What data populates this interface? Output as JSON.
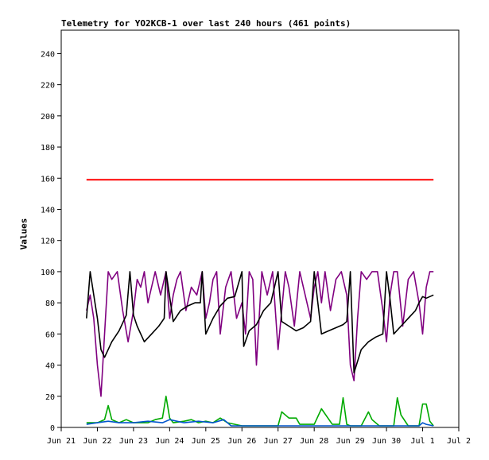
{
  "chart_data": {
    "type": "line",
    "title": "Telemetry for YO2KCB-1 over last 240 hours (461 points)",
    "ylabel": "Values",
    "xlabel": "",
    "ylim": [
      0,
      255
    ],
    "xlim": [
      0,
      11
    ],
    "y_ticks": [
      0,
      20,
      40,
      60,
      80,
      100,
      120,
      140,
      160,
      180,
      200,
      220,
      240
    ],
    "x_ticks": [
      "Jun 21",
      "Jun 22",
      "Jun 23",
      "Jun 24",
      "Jun 25",
      "Jun 26",
      "Jun 27",
      "Jun 28",
      "Jun 29",
      "Jun 30",
      "Jul 1",
      "Jul 2"
    ],
    "grid": false,
    "series": [
      {
        "color": "#ff0000",
        "x": [
          0.7,
          10.3
        ],
        "values": [
          159,
          159
        ]
      },
      {
        "color": "#800080",
        "x": [
          0.7,
          0.8,
          0.9,
          1.0,
          1.1,
          1.2,
          1.3,
          1.4,
          1.55,
          1.7,
          1.85,
          2.0,
          2.1,
          2.2,
          2.3,
          2.4,
          2.5,
          2.6,
          2.75,
          2.9,
          3.0,
          3.1,
          3.2,
          3.3,
          3.45,
          3.6,
          3.75,
          3.9,
          4.0,
          4.1,
          4.2,
          4.3,
          4.4,
          4.55,
          4.7,
          4.85,
          5.0,
          5.1,
          5.2,
          5.3,
          5.4,
          5.55,
          5.7,
          5.85,
          6.0,
          6.1,
          6.2,
          6.3,
          6.45,
          6.6,
          6.75,
          6.9,
          7.0,
          7.1,
          7.2,
          7.3,
          7.45,
          7.6,
          7.75,
          7.9,
          8.0,
          8.1,
          8.2,
          8.3,
          8.45,
          8.6,
          8.75,
          8.9,
          9.0,
          9.1,
          9.2,
          9.3,
          9.45,
          9.6,
          9.75,
          9.9,
          10.0,
          10.1,
          10.2,
          10.3
        ],
        "values": [
          75,
          85,
          70,
          40,
          20,
          60,
          100,
          95,
          100,
          75,
          55,
          75,
          95,
          90,
          100,
          80,
          90,
          100,
          85,
          100,
          70,
          85,
          95,
          100,
          75,
          90,
          85,
          100,
          70,
          80,
          95,
          100,
          60,
          90,
          100,
          70,
          80,
          60,
          100,
          95,
          40,
          100,
          85,
          100,
          50,
          75,
          100,
          90,
          65,
          100,
          85,
          70,
          90,
          100,
          80,
          100,
          75,
          95,
          100,
          85,
          40,
          30,
          70,
          100,
          95,
          100,
          100,
          75,
          55,
          85,
          100,
          100,
          65,
          95,
          100,
          80,
          60,
          90,
          100,
          100
        ]
      },
      {
        "color": "#000000",
        "x": [
          0.7,
          0.8,
          0.9,
          1.0,
          1.1,
          1.2,
          1.4,
          1.6,
          1.8,
          1.9,
          2.0,
          2.1,
          2.3,
          2.5,
          2.7,
          2.85,
          2.9,
          3.1,
          3.3,
          3.5,
          3.7,
          3.85,
          3.9,
          4.0,
          4.2,
          4.4,
          4.6,
          4.8,
          5.0,
          5.05,
          5.2,
          5.4,
          5.6,
          5.8,
          6.0,
          6.1,
          6.3,
          6.5,
          6.7,
          6.9,
          7.0,
          7.2,
          7.4,
          7.6,
          7.8,
          7.9,
          8.0,
          8.1,
          8.3,
          8.5,
          8.7,
          8.9,
          9.0,
          9.1,
          9.2,
          9.4,
          9.6,
          9.8,
          9.9,
          10.0,
          10.1,
          10.3
        ],
        "values": [
          70,
          100,
          85,
          70,
          50,
          45,
          55,
          62,
          72,
          100,
          72,
          65,
          55,
          60,
          65,
          70,
          100,
          68,
          75,
          78,
          80,
          80,
          100,
          60,
          70,
          78,
          83,
          84,
          100,
          52,
          62,
          66,
          75,
          80,
          100,
          68,
          65,
          62,
          64,
          68,
          100,
          60,
          62,
          64,
          66,
          68,
          100,
          35,
          50,
          55,
          58,
          60,
          100,
          82,
          60,
          65,
          70,
          75,
          80,
          84,
          83,
          85
        ]
      },
      {
        "color": "#00aa00",
        "x": [
          0.7,
          1.0,
          1.2,
          1.3,
          1.4,
          1.6,
          1.8,
          2.0,
          2.4,
          2.6,
          2.8,
          2.9,
          3.0,
          3.1,
          3.4,
          3.6,
          3.8,
          4.0,
          4.2,
          4.4,
          4.6,
          5.0,
          5.5,
          6.0,
          6.1,
          6.3,
          6.5,
          6.6,
          7.0,
          7.2,
          7.5,
          7.7,
          7.8,
          7.9,
          8.0,
          8.3,
          8.5,
          8.6,
          8.8,
          9.0,
          9.2,
          9.3,
          9.4,
          9.6,
          9.9,
          10.0,
          10.1,
          10.2,
          10.3
        ],
        "values": [
          3,
          3,
          5,
          14,
          5,
          3,
          5,
          3,
          3,
          5,
          6,
          20,
          6,
          3,
          4,
          5,
          3,
          4,
          3,
          6,
          3,
          1,
          1,
          1,
          10,
          6,
          6,
          2,
          2,
          12,
          2,
          2,
          19,
          2,
          1,
          1,
          10,
          5,
          1,
          1,
          1,
          19,
          8,
          1,
          1,
          15,
          15,
          4,
          1
        ]
      },
      {
        "color": "#0055cc",
        "x": [
          0.7,
          1.0,
          1.3,
          1.6,
          2.0,
          2.4,
          2.8,
          3.0,
          3.4,
          3.8,
          4.2,
          4.5,
          4.7,
          5.0,
          5.5,
          6.0,
          6.5,
          7.0,
          7.5,
          8.0,
          8.5,
          9.0,
          9.5,
          9.9,
          10.0,
          10.1,
          10.3
        ],
        "values": [
          2,
          3,
          4,
          3,
          3,
          4,
          3,
          5,
          3,
          4,
          3,
          5,
          1,
          1,
          1,
          1,
          1,
          1,
          1,
          1,
          1,
          1,
          1,
          1,
          3,
          2,
          1
        ]
      }
    ]
  }
}
